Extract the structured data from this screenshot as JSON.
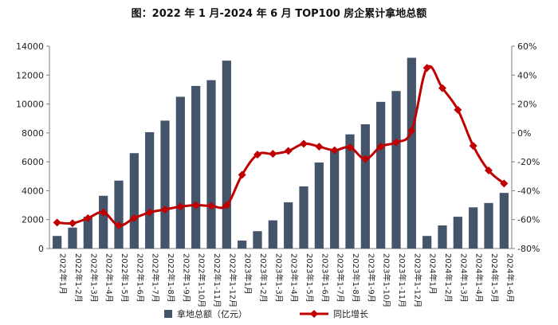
{
  "title": "图：2022 年 1 月-2024 年 6 月 TOP100 房企累计拿地总额",
  "chart_data": {
    "type": "bar",
    "title": "图：2022 年 1 月-2024 年 6 月 TOP100 房企累计拿地总额",
    "categories": [
      "2022年1月",
      "2022年1-2月",
      "2022年1-3月",
      "2022年1-4月",
      "2022年1-5月",
      "2022年1-6月",
      "2022年1-7月",
      "2022年1-8月",
      "2022年1-9月",
      "2022年1-10月",
      "2022年1-11月",
      "2022年1-12月",
      "2023年1月",
      "2023年1-2月",
      "2023年1-3月",
      "2023年1-4月",
      "2023年1-5月",
      "2023年1-6月",
      "2023年1-7月",
      "2023年1-8月",
      "2023年1-9月",
      "2023年1-10月",
      "2023年1-11月",
      "2023年1-12月",
      "2024年1月",
      "2024年1-2月",
      "2024年1-3月",
      "2024年1-4月",
      "2024年1-5月",
      "2024年1-6月"
    ],
    "series": [
      {
        "name": "拿地总额（亿元）",
        "type": "bar",
        "axis": "left",
        "color": "#44546a",
        "values": [
          870,
          1450,
          2200,
          3650,
          4700,
          6600,
          8050,
          8850,
          10500,
          11250,
          11650,
          13000,
          550,
          1200,
          1950,
          3200,
          4300,
          5950,
          6850,
          7900,
          8600,
          10150,
          10900,
          13200,
          870,
          1600,
          2200,
          2850,
          3150,
          3850
        ]
      },
      {
        "name": "同比增长",
        "type": "line",
        "axis": "right",
        "color": "#c00000",
        "values": [
          -62,
          -62.5,
          -59,
          -55,
          -64,
          -59,
          -55,
          -53,
          -51,
          -50,
          -50.5,
          -50,
          -29,
          -15,
          -14.5,
          -12.5,
          -7.5,
          -9.5,
          -12,
          -10,
          -18,
          -9.5,
          -6.5,
          1.5,
          45,
          31,
          16,
          -9,
          -26,
          -35
        ]
      }
    ],
    "y_left": {
      "min": 0,
      "max": 14000,
      "step": 2000,
      "ticks": [
        "0",
        "2000",
        "4000",
        "6000",
        "8000",
        "10000",
        "12000",
        "14000"
      ]
    },
    "y_right": {
      "min": -80,
      "max": 60,
      "step": 20,
      "ticks": [
        "-80%",
        "-60%",
        "-40%",
        "-20%",
        "0%",
        "20%",
        "40%",
        "60%"
      ]
    },
    "legend": {
      "position": "bottom",
      "items": [
        {
          "label": "拿地总额（亿元）",
          "marker": "bar",
          "color": "#44546a"
        },
        {
          "label": "同比增长",
          "marker": "line-diamond",
          "color": "#c00000"
        }
      ]
    },
    "grid": false
  }
}
